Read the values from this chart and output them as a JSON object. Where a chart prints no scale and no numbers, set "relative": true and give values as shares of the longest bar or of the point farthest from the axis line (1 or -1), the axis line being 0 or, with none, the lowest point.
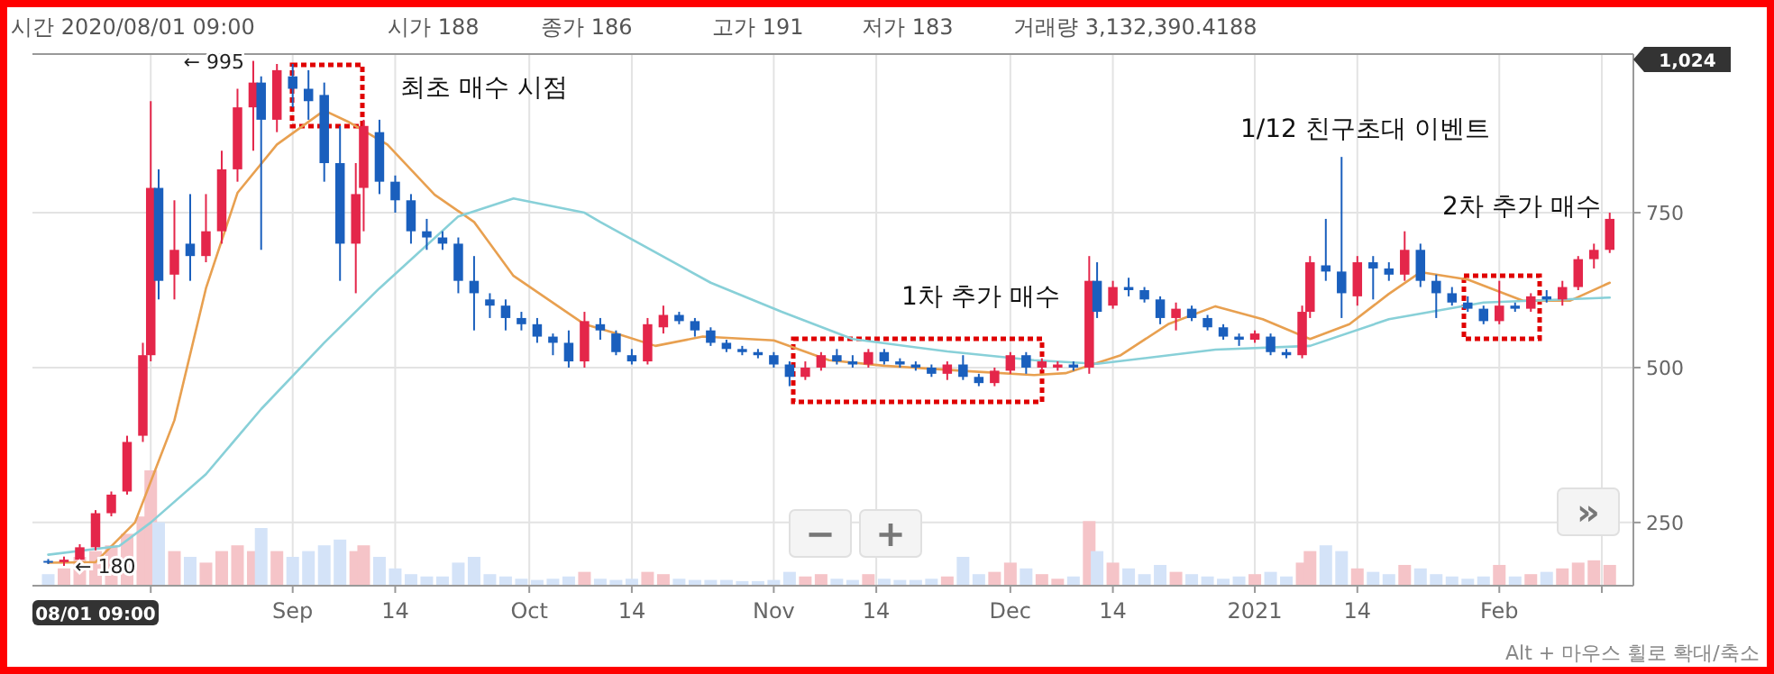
{
  "chart_data": [
    {
      "type": "candlestick",
      "x": [
        "2020-08-01",
        "2020-08-03",
        "2020-08-05",
        "2020-08-07",
        "2020-08-09",
        "2020-08-11",
        "2020-08-13",
        "2020-08-14",
        "2020-08-15",
        "2020-08-17",
        "2020-08-19",
        "2020-08-21",
        "2020-08-23",
        "2020-08-25",
        "2020-08-27",
        "2020-08-28",
        "2020-08-30",
        "2020-09-01",
        "2020-09-03",
        "2020-09-05",
        "2020-09-07",
        "2020-09-09",
        "2020-09-10",
        "2020-09-12",
        "2020-09-14",
        "2020-09-16",
        "2020-09-18",
        "2020-09-20",
        "2020-09-22",
        "2020-09-24",
        "2020-09-26",
        "2020-09-28",
        "2020-09-30",
        "2020-10-02",
        "2020-10-04",
        "2020-10-06",
        "2020-10-08",
        "2020-10-10",
        "2020-10-12",
        "2020-10-14",
        "2020-10-16",
        "2020-10-18",
        "2020-10-20",
        "2020-10-22",
        "2020-10-24",
        "2020-10-26",
        "2020-10-28",
        "2020-10-30",
        "2020-11-01",
        "2020-11-03",
        "2020-11-05",
        "2020-11-07",
        "2020-11-09",
        "2020-11-11",
        "2020-11-13",
        "2020-11-15",
        "2020-11-17",
        "2020-11-19",
        "2020-11-21",
        "2020-11-23",
        "2020-11-25",
        "2020-11-27",
        "2020-11-29",
        "2020-12-01",
        "2020-12-03",
        "2020-12-05",
        "2020-12-07",
        "2020-12-09",
        "2020-12-11",
        "2020-12-12",
        "2020-12-14",
        "2020-12-16",
        "2020-12-18",
        "2020-12-20",
        "2020-12-22",
        "2020-12-24",
        "2020-12-26",
        "2020-12-28",
        "2020-12-30",
        "2021-01-01",
        "2021-01-03",
        "2021-01-05",
        "2021-01-07",
        "2021-01-08",
        "2021-01-10",
        "2021-01-12",
        "2021-01-14",
        "2021-01-16",
        "2021-01-18",
        "2021-01-20",
        "2021-01-22",
        "2021-01-24",
        "2021-01-26",
        "2021-01-28",
        "2021-01-30",
        "2021-02-01",
        "2021-02-03",
        "2021-02-05",
        "2021-02-07",
        "2021-02-09",
        "2021-02-11",
        "2021-02-13",
        "2021-02-15"
      ],
      "ohlc": [
        [
          188,
          191,
          183,
          186
        ],
        [
          186,
          195,
          180,
          190
        ],
        [
          190,
          215,
          185,
          210
        ],
        [
          210,
          270,
          205,
          265
        ],
        [
          265,
          300,
          260,
          295
        ],
        [
          300,
          390,
          295,
          380
        ],
        [
          390,
          540,
          380,
          520
        ],
        [
          520,
          930,
          510,
          790
        ],
        [
          790,
          820,
          610,
          640
        ],
        [
          650,
          770,
          610,
          690
        ],
        [
          700,
          780,
          640,
          680
        ],
        [
          680,
          780,
          670,
          720
        ],
        [
          720,
          850,
          700,
          820
        ],
        [
          820,
          950,
          800,
          920
        ],
        [
          920,
          995,
          850,
          960
        ],
        [
          960,
          970,
          690,
          900
        ],
        [
          900,
          990,
          880,
          980
        ],
        [
          970,
          990,
          920,
          950
        ],
        [
          950,
          980,
          900,
          930
        ],
        [
          940,
          960,
          800,
          830
        ],
        [
          830,
          890,
          640,
          700
        ],
        [
          700,
          830,
          620,
          780
        ],
        [
          790,
          900,
          720,
          890
        ],
        [
          880,
          900,
          780,
          800
        ],
        [
          800,
          810,
          750,
          770
        ],
        [
          770,
          780,
          700,
          720
        ],
        [
          720,
          740,
          690,
          710
        ],
        [
          710,
          720,
          690,
          700
        ],
        [
          700,
          710,
          620,
          640
        ],
        [
          640,
          680,
          560,
          620
        ],
        [
          610,
          620,
          580,
          600
        ],
        [
          600,
          610,
          560,
          580
        ],
        [
          580,
          590,
          560,
          570
        ],
        [
          570,
          580,
          540,
          550
        ],
        [
          550,
          555,
          520,
          540
        ],
        [
          540,
          560,
          500,
          510
        ],
        [
          510,
          590,
          500,
          575
        ],
        [
          570,
          580,
          545,
          560
        ],
        [
          555,
          560,
          520,
          525
        ],
        [
          520,
          530,
          505,
          510
        ],
        [
          510,
          580,
          505,
          570
        ],
        [
          565,
          600,
          555,
          585
        ],
        [
          585,
          590,
          570,
          575
        ],
        [
          575,
          580,
          550,
          560
        ],
        [
          560,
          565,
          535,
          540
        ],
        [
          540,
          545,
          525,
          530
        ],
        [
          530,
          535,
          520,
          525
        ],
        [
          525,
          530,
          515,
          520
        ],
        [
          520,
          525,
          500,
          505
        ],
        [
          505,
          510,
          470,
          485
        ],
        [
          485,
          510,
          480,
          500
        ],
        [
          500,
          525,
          495,
          520
        ],
        [
          520,
          530,
          505,
          510
        ],
        [
          510,
          520,
          500,
          505
        ],
        [
          505,
          530,
          500,
          525
        ],
        [
          525,
          530,
          505,
          510
        ],
        [
          510,
          515,
          500,
          505
        ],
        [
          505,
          510,
          495,
          500
        ],
        [
          500,
          505,
          485,
          490
        ],
        [
          490,
          510,
          480,
          505
        ],
        [
          505,
          520,
          480,
          485
        ],
        [
          485,
          490,
          470,
          475
        ],
        [
          475,
          500,
          470,
          495
        ],
        [
          495,
          525,
          490,
          520
        ],
        [
          520,
          525,
          490,
          500
        ],
        [
          500,
          515,
          495,
          510
        ],
        [
          500,
          510,
          495,
          505
        ],
        [
          505,
          510,
          495,
          500
        ],
        [
          500,
          680,
          490,
          640
        ],
        [
          640,
          670,
          580,
          590
        ],
        [
          600,
          640,
          595,
          630
        ],
        [
          630,
          645,
          615,
          625
        ],
        [
          625,
          630,
          605,
          610
        ],
        [
          610,
          615,
          570,
          580
        ],
        [
          580,
          605,
          560,
          595
        ],
        [
          595,
          600,
          575,
          580
        ],
        [
          580,
          585,
          560,
          565
        ],
        [
          565,
          570,
          545,
          550
        ],
        [
          550,
          555,
          535,
          545
        ],
        [
          545,
          560,
          540,
          555
        ],
        [
          550,
          555,
          520,
          525
        ],
        [
          525,
          530,
          515,
          520
        ],
        [
          520,
          600,
          515,
          590
        ],
        [
          590,
          680,
          580,
          670
        ],
        [
          665,
          740,
          640,
          655
        ],
        [
          655,
          840,
          580,
          620
        ],
        [
          615,
          680,
          600,
          670
        ],
        [
          670,
          680,
          610,
          660
        ],
        [
          660,
          670,
          640,
          650
        ],
        [
          650,
          720,
          640,
          690
        ],
        [
          690,
          700,
          630,
          640
        ],
        [
          640,
          650,
          580,
          620
        ],
        [
          620,
          630,
          600,
          605
        ],
        [
          605,
          615,
          590,
          595
        ],
        [
          595,
          600,
          570,
          575
        ],
        [
          575,
          640,
          570,
          600
        ],
        [
          600,
          605,
          590,
          595
        ],
        [
          595,
          620,
          590,
          615
        ],
        [
          615,
          625,
          605,
          610
        ],
        [
          610,
          640,
          600,
          630
        ],
        [
          630,
          680,
          625,
          675
        ],
        [
          675,
          700,
          660,
          690
        ],
        [
          690,
          750,
          685,
          740
        ]
      ],
      "colors": [
        "#1a5fbd",
        "#e4264a",
        "#e4264a",
        "#e4264a",
        "#e4264a",
        "#e4264a",
        "#e4264a",
        "#e4264a",
        "#1a5fbd",
        "#e4264a",
        "#1a5fbd",
        "#e4264a",
        "#e4264a",
        "#e4264a",
        "#e4264a",
        "#1a5fbd",
        "#e4264a",
        "#1a5fbd",
        "#1a5fbd",
        "#1a5fbd",
        "#1a5fbd",
        "#e4264a",
        "#e4264a",
        "#1a5fbd",
        "#1a5fbd",
        "#1a5fbd",
        "#1a5fbd",
        "#1a5fbd",
        "#1a5fbd",
        "#1a5fbd",
        "#1a5fbd",
        "#1a5fbd",
        "#1a5fbd",
        "#1a5fbd",
        "#1a5fbd",
        "#1a5fbd",
        "#e4264a",
        "#1a5fbd",
        "#1a5fbd",
        "#1a5fbd",
        "#e4264a",
        "#e4264a",
        "#1a5fbd",
        "#1a5fbd",
        "#1a5fbd",
        "#1a5fbd",
        "#1a5fbd",
        "#1a5fbd",
        "#1a5fbd",
        "#1a5fbd",
        "#e4264a",
        "#e4264a",
        "#1a5fbd",
        "#1a5fbd",
        "#e4264a",
        "#1a5fbd",
        "#1a5fbd",
        "#1a5fbd",
        "#1a5fbd",
        "#e4264a",
        "#1a5fbd",
        "#1a5fbd",
        "#e4264a",
        "#e4264a",
        "#1a5fbd",
        "#e4264a",
        "#e4264a",
        "#1a5fbd",
        "#e4264a",
        "#1a5fbd",
        "#e4264a",
        "#1a5fbd",
        "#1a5fbd",
        "#1a5fbd",
        "#e4264a",
        "#1a5fbd",
        "#1a5fbd",
        "#1a5fbd",
        "#1a5fbd",
        "#e4264a",
        "#1a5fbd",
        "#1a5fbd",
        "#e4264a",
        "#e4264a",
        "#1a5fbd",
        "#1a5fbd",
        "#e4264a",
        "#1a5fbd",
        "#1a5fbd",
        "#e4264a",
        "#1a5fbd",
        "#1a5fbd",
        "#1a5fbd",
        "#1a5fbd",
        "#1a5fbd",
        "#e4264a",
        "#1a5fbd",
        "#e4264a",
        "#1a5fbd",
        "#e4264a",
        "#e4264a",
        "#e4264a",
        "#e4264a"
      ],
      "series": [
        {
          "type": "line",
          "color": "#e8a050",
          "x": [
            "2020-08-01",
            "2020-08-07",
            "2020-08-12",
            "2020-08-17",
            "2020-08-21",
            "2020-08-25",
            "2020-08-30",
            "2020-09-05",
            "2020-09-08",
            "2020-09-13",
            "2020-09-19",
            "2020-09-24",
            "2020-09-29",
            "2020-10-08",
            "2020-10-12",
            "2020-10-17",
            "2020-10-23",
            "2020-11-01",
            "2020-11-08",
            "2020-11-15",
            "2020-11-26",
            "2020-12-04",
            "2020-12-08",
            "2020-12-15",
            "2020-12-21",
            "2020-12-27",
            "2021-01-02",
            "2021-01-08",
            "2021-01-13",
            "2021-01-18",
            "2021-01-22",
            "2021-01-28",
            "2021-02-04",
            "2021-02-10",
            "2021-02-15"
          ],
          "values": [
            185,
            186,
            250,
            415,
            628,
            782,
            860,
            915,
            897,
            860,
            779,
            735,
            648,
            570,
            555,
            535,
            550,
            544,
            512,
            503,
            494,
            488,
            491,
            520,
            570,
            599,
            578,
            546,
            570,
            619,
            654,
            642,
            608,
            608,
            637
          ]
        },
        {
          "type": "line",
          "color": "#88d0d8",
          "x": [
            "2020-08-01",
            "2020-08-10",
            "2020-08-14",
            "2020-08-21",
            "2020-08-28",
            "2020-09-05",
            "2020-09-12",
            "2020-09-22",
            "2020-09-29",
            "2020-10-08",
            "2020-10-10",
            "2020-10-24",
            "2020-11-02",
            "2020-11-11",
            "2020-11-23",
            "2020-12-04",
            "2020-12-12",
            "2020-12-27",
            "2021-01-08",
            "2021-01-18",
            "2021-01-30",
            "2021-02-15"
          ],
          "values": [
            198,
            212,
            250,
            328,
            433,
            540,
            628,
            744,
            773,
            750,
            735,
            637,
            590,
            546,
            526,
            512,
            506,
            529,
            535,
            578,
            605,
            613
          ]
        }
      ],
      "xlim": [
        "2020-07-30",
        "2021-02-18"
      ],
      "xticks": [
        {
          "value": "2020-08-14",
          "label": null
        },
        {
          "value": "2020-09-01",
          "label": "Sep"
        },
        {
          "value": "2020-09-14",
          "label": "14"
        },
        {
          "value": "2020-10-01",
          "label": "Oct"
        },
        {
          "value": "2020-10-14",
          "label": "14"
        },
        {
          "value": "2020-11-01",
          "label": "Nov"
        },
        {
          "value": "2020-11-14",
          "label": "14"
        },
        {
          "value": "2020-12-01",
          "label": "Dec"
        },
        {
          "value": "2020-12-14",
          "label": "14"
        },
        {
          "value": "2021-01-01",
          "label": "2021"
        },
        {
          "value": "2021-01-14",
          "label": "14"
        },
        {
          "value": "2021-02-01",
          "label": "Feb"
        },
        {
          "value": "2021-02-14",
          "label": null
        }
      ],
      "ylim": [
        148,
        1006
      ],
      "yticks": [
        250,
        500,
        750
      ],
      "grid": true,
      "annotations": [
        "시간 2020/08/01 09:00",
        "시가 188",
        "종가 186",
        "고가 191",
        "저가 183",
        "거래량 3,132,390.4188",
        "최초 매수 시점",
        "1차 추가 매수",
        "1/12 친구초대 이벤트",
        "2차 추가 매수",
        "1,024",
        "08/01 09:00",
        "−",
        "+",
        "»",
        "Alt + 마우스 휠로 확대/축소",
        {
          "text": "← 995",
          "x": "2020-08-27",
          "y": 995
        },
        {
          "text": "← 180",
          "x": "2020-08-03",
          "y": 180
        }
      ]
    },
    {
      "type": "bar",
      "relative": true,
      "xlim": [
        "2020-07-30",
        "2021-02-18"
      ],
      "x": [
        "2020-08-01",
        "2020-08-03",
        "2020-08-05",
        "2020-08-07",
        "2020-08-09",
        "2020-08-11",
        "2020-08-13",
        "2020-08-14",
        "2020-08-15",
        "2020-08-17",
        "2020-08-19",
        "2020-08-21",
        "2020-08-23",
        "2020-08-25",
        "2020-08-27",
        "2020-08-28",
        "2020-08-30",
        "2020-09-01",
        "2020-09-03",
        "2020-09-05",
        "2020-09-07",
        "2020-09-09",
        "2020-09-10",
        "2020-09-12",
        "2020-09-14",
        "2020-09-16",
        "2020-09-18",
        "2020-09-20",
        "2020-09-22",
        "2020-09-24",
        "2020-09-26",
        "2020-09-28",
        "2020-09-30",
        "2020-10-02",
        "2020-10-04",
        "2020-10-06",
        "2020-10-08",
        "2020-10-10",
        "2020-10-12",
        "2020-10-14",
        "2020-10-16",
        "2020-10-18",
        "2020-10-20",
        "2020-10-22",
        "2020-10-24",
        "2020-10-26",
        "2020-10-28",
        "2020-10-30",
        "2020-11-01",
        "2020-11-03",
        "2020-11-05",
        "2020-11-07",
        "2020-11-09",
        "2020-11-11",
        "2020-11-13",
        "2020-11-15",
        "2020-11-17",
        "2020-11-19",
        "2020-11-21",
        "2020-11-23",
        "2020-11-25",
        "2020-11-27",
        "2020-11-29",
        "2020-12-01",
        "2020-12-03",
        "2020-12-05",
        "2020-12-07",
        "2020-12-09",
        "2020-12-11",
        "2020-12-12",
        "2020-12-14",
        "2020-12-16",
        "2020-12-18",
        "2020-12-20",
        "2020-12-22",
        "2020-12-24",
        "2020-12-26",
        "2020-12-28",
        "2020-12-30",
        "2021-01-01",
        "2021-01-03",
        "2021-01-05",
        "2021-01-07",
        "2021-01-08",
        "2021-01-10",
        "2021-01-12",
        "2021-01-14",
        "2021-01-16",
        "2021-01-18",
        "2021-01-20",
        "2021-01-22",
        "2021-01-24",
        "2021-01-26",
        "2021-01-28",
        "2021-01-30",
        "2021-02-01",
        "2021-02-03",
        "2021-02-05",
        "2021-02-07",
        "2021-02-09",
        "2021-02-11",
        "2021-02-13",
        "2021-02-15"
      ],
      "values": [
        0.1,
        0.15,
        0.25,
        0.3,
        0.35,
        0.45,
        0.6,
        1,
        0.55,
        0.3,
        0.25,
        0.2,
        0.3,
        0.35,
        0.3,
        0.5,
        0.3,
        0.25,
        0.3,
        0.35,
        0.4,
        0.3,
        0.35,
        0.25,
        0.15,
        0.1,
        0.08,
        0.08,
        0.2,
        0.25,
        0.1,
        0.08,
        0.06,
        0.05,
        0.06,
        0.08,
        0.12,
        0.06,
        0.05,
        0.06,
        0.12,
        0.1,
        0.06,
        0.05,
        0.05,
        0.05,
        0.04,
        0.04,
        0.05,
        0.12,
        0.08,
        0.1,
        0.06,
        0.05,
        0.1,
        0.06,
        0.05,
        0.05,
        0.06,
        0.08,
        0.25,
        0.1,
        0.12,
        0.2,
        0.15,
        0.1,
        0.06,
        0.08,
        0.56,
        0.3,
        0.2,
        0.15,
        0.1,
        0.18,
        0.12,
        0.1,
        0.08,
        0.06,
        0.08,
        0.1,
        0.12,
        0.08,
        0.2,
        0.3,
        0.35,
        0.3,
        0.15,
        0.12,
        0.1,
        0.18,
        0.15,
        0.1,
        0.08,
        0.06,
        0.08,
        0.18,
        0.08,
        0.1,
        0.12,
        0.15,
        0.2,
        0.22,
        0.18
      ],
      "colors": [
        "#d4e3f8",
        "#f5c4c8",
        "#f5c4c8",
        "#f5c4c8",
        "#f5c4c8",
        "#f5c4c8",
        "#f5c4c8",
        "#f5c4c8",
        "#d4e3f8",
        "#f5c4c8",
        "#d4e3f8",
        "#f5c4c8",
        "#f5c4c8",
        "#f5c4c8",
        "#f5c4c8",
        "#d4e3f8",
        "#f5c4c8",
        "#d4e3f8",
        "#d4e3f8",
        "#d4e3f8",
        "#d4e3f8",
        "#f5c4c8",
        "#f5c4c8",
        "#d4e3f8",
        "#d4e3f8",
        "#d4e3f8",
        "#d4e3f8",
        "#d4e3f8",
        "#d4e3f8",
        "#d4e3f8",
        "#d4e3f8",
        "#d4e3f8",
        "#d4e3f8",
        "#d4e3f8",
        "#d4e3f8",
        "#d4e3f8",
        "#f5c4c8",
        "#d4e3f8",
        "#d4e3f8",
        "#d4e3f8",
        "#f5c4c8",
        "#f5c4c8",
        "#d4e3f8",
        "#d4e3f8",
        "#d4e3f8",
        "#d4e3f8",
        "#d4e3f8",
        "#d4e3f8",
        "#d4e3f8",
        "#d4e3f8",
        "#f5c4c8",
        "#f5c4c8",
        "#d4e3f8",
        "#d4e3f8",
        "#f5c4c8",
        "#d4e3f8",
        "#d4e3f8",
        "#d4e3f8",
        "#d4e3f8",
        "#f5c4c8",
        "#d4e3f8",
        "#d4e3f8",
        "#f5c4c8",
        "#f5c4c8",
        "#d4e3f8",
        "#f5c4c8",
        "#f5c4c8",
        "#d4e3f8",
        "#f5c4c8",
        "#d4e3f8",
        "#f5c4c8",
        "#d4e3f8",
        "#d4e3f8",
        "#d4e3f8",
        "#f5c4c8",
        "#d4e3f8",
        "#d4e3f8",
        "#d4e3f8",
        "#d4e3f8",
        "#f5c4c8",
        "#d4e3f8",
        "#d4e3f8",
        "#f5c4c8",
        "#f5c4c8",
        "#d4e3f8",
        "#d4e3f8",
        "#f5c4c8",
        "#d4e3f8",
        "#d4e3f8",
        "#f5c4c8",
        "#d4e3f8",
        "#d4e3f8",
        "#d4e3f8",
        "#d4e3f8",
        "#d4e3f8",
        "#f5c4c8",
        "#d4e3f8",
        "#f5c4c8",
        "#d4e3f8",
        "#f5c4c8",
        "#f5c4c8",
        "#f5c4c8",
        "#f5c4c8"
      ]
    }
  ]
}
